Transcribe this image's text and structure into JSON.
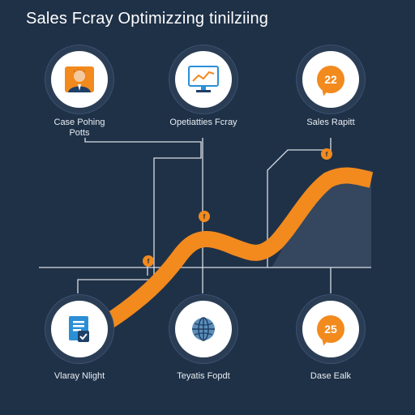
{
  "title": "Sales Fcray Optimizzing tinilziing",
  "colors": {
    "background": "#1f3147",
    "accent": "#f28a1e",
    "node_ring": "#2a3d55",
    "line": "#d9dee5",
    "area": "#34475f"
  },
  "top_nodes": [
    {
      "label_line1": "Case Pohing",
      "label_line2": "Potts",
      "icon": "person-icon"
    },
    {
      "label_line1": "Opetiatties Fcray",
      "label_line2": "",
      "icon": "monitor-chart-icon"
    },
    {
      "label_line1": "Sales Rapitt",
      "label_line2": "",
      "icon": "chat-bubble-icon",
      "icon_text": "22"
    }
  ],
  "bottom_nodes": [
    {
      "label_line1": "Vlaray Nlight",
      "icon": "document-icon"
    },
    {
      "label_line1": "Teyatis Fopdt",
      "icon": "globe-icon"
    },
    {
      "label_line1": "Dase Ealk",
      "icon": "chat-bubble-icon",
      "icon_text": "25"
    }
  ],
  "markers": [
    "f",
    "f",
    "f"
  ]
}
